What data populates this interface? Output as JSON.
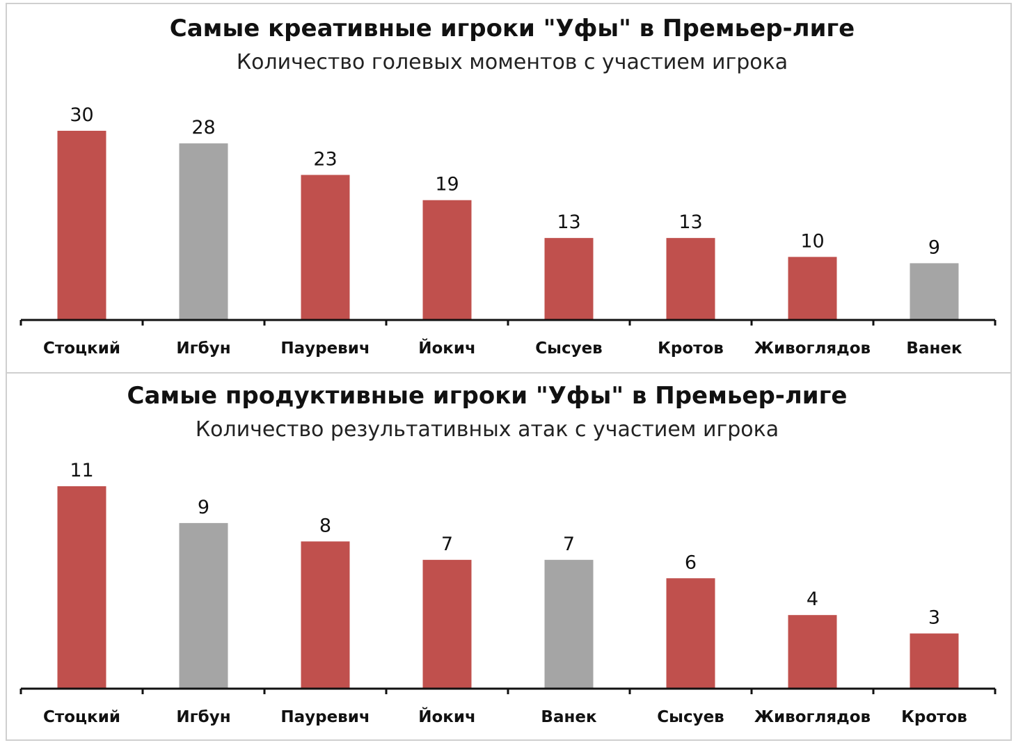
{
  "chart_data": [
    {
      "type": "bar",
      "title": "Самые креативные игроки \"Уфы\" в Премьер-лиге",
      "subtitle": "Количество голевых моментов с участием игрока",
      "categories": [
        "Стоцкий",
        "Игбун",
        "Пауревич",
        "Йокич",
        "Сысуев",
        "Кротов",
        "Живоглядов",
        "Ванек"
      ],
      "values": [
        30,
        28,
        23,
        19,
        13,
        13,
        10,
        9
      ],
      "value_labels": [
        "30",
        "28",
        "23",
        "19",
        "13",
        "13",
        "10",
        "9"
      ],
      "highlight": [
        false,
        true,
        false,
        false,
        false,
        false,
        false,
        true
      ],
      "ylim": [
        0,
        30
      ],
      "grid": false
    },
    {
      "type": "bar",
      "title": "Самые продуктивные игроки \"Уфы\" в Премьер-лиге",
      "subtitle": "Количество результативных атак с участием игрока",
      "categories": [
        "Стоцкий",
        "Игбун",
        "Пауревич",
        "Йокич",
        "Ванек",
        "Сысуев",
        "Живоглядов",
        "Кротов"
      ],
      "values": [
        11,
        9,
        8,
        7,
        7,
        6,
        4,
        3
      ],
      "value_labels": [
        "11",
        "9",
        "8",
        "7",
        "7",
        "6",
        "4",
        "3"
      ],
      "highlight": [
        false,
        true,
        false,
        false,
        true,
        false,
        false,
        false
      ],
      "ylim": [
        0,
        11
      ],
      "grid": false
    }
  ],
  "colors": {
    "bar": "#c0504d",
    "bar_highlight": "#a5a5a5",
    "axis": "#111111"
  }
}
